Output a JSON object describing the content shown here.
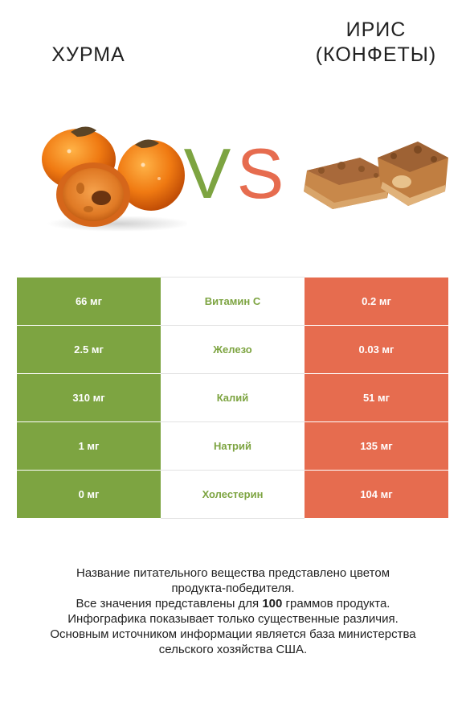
{
  "header": {
    "left_title": "ХУРМА",
    "right_title_line1": "ИРИС",
    "right_title_line2": "(КОНФЕТЫ)",
    "vs_left_letter": "V",
    "vs_right_letter": "S"
  },
  "colors": {
    "left_accent": "#7da441",
    "right_accent": "#e66c4f"
  },
  "images": {
    "left": "persimmon-image",
    "right": "toffee-candy-image"
  },
  "chart_data": {
    "type": "table",
    "columns": [
      "Хурма",
      "Нутриент",
      "Ирис (конфеты)"
    ],
    "rows": [
      {
        "nutrient": "Витамин C",
        "left": "66 мг",
        "right": "0.2 мг",
        "winner": "left"
      },
      {
        "nutrient": "Железо",
        "left": "2.5 мг",
        "right": "0.03 мг",
        "winner": "left"
      },
      {
        "nutrient": "Калий",
        "left": "310 мг",
        "right": "51 мг",
        "winner": "left"
      },
      {
        "nutrient": "Натрий",
        "left": "1 мг",
        "right": "135 мг",
        "winner": "left"
      },
      {
        "nutrient": "Холестерин",
        "left": "0 мг",
        "right": "104 мг",
        "winner": "left"
      }
    ]
  },
  "footnote": {
    "line1": "Название питательного вещества представлено цветом",
    "line2": "продукта-победителя.",
    "line3_pre": "Все значения представлены для ",
    "line3_bold": "100",
    "line3_post": " граммов продукта.",
    "line4": "Инфографика показывает только существенные различия.",
    "line5": "Основным источником информации является база министерства",
    "line6": "сельского хозяйства США."
  }
}
